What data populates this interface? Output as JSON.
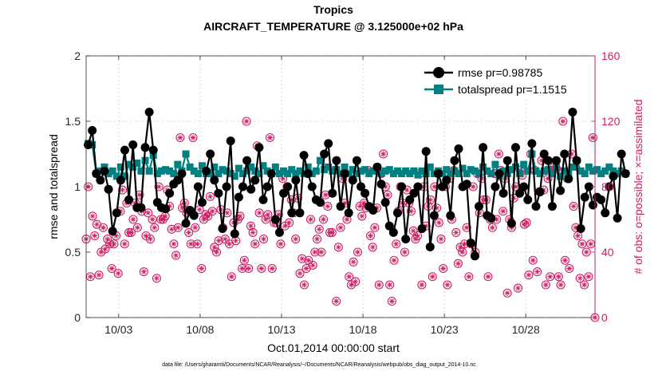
{
  "chart_data": {
    "type": "line",
    "title": "Tropics",
    "subtitle": "AIRCRAFT_TEMPERATURE @ 3.125000e+02 hPa",
    "xlabel": "Oct.01,2014 00:00:00 start",
    "ylabel_left": "rmse and totalspread",
    "ylabel_right": "# of obs: o=possible; ×=assimilated",
    "footnote": "data file: /Users/gharamti/Documents/NCAR/Reanalysis/~/Documents/NCAR/Reanalysis/webpub/obs_diag_output_2014-10.nc",
    "xlim": [
      1.0,
      32.25
    ],
    "ylim_left": [
      0,
      2
    ],
    "ylim_right": [
      0,
      160
    ],
    "x_ticks": [
      3,
      8,
      13,
      18,
      23,
      28
    ],
    "x_tick_labels": [
      "10/03",
      "10/08",
      "10/13",
      "10/18",
      "10/23",
      "10/28"
    ],
    "y_left_ticks": [
      0,
      0.5,
      1,
      1.5,
      2
    ],
    "y_left_tick_labels": [
      "0",
      "0.5",
      "1",
      "1.5",
      "2"
    ],
    "y_right_ticks": [
      0,
      40,
      80,
      120,
      160
    ],
    "y_right_tick_labels": [
      "0",
      "40",
      "80",
      "120",
      "160"
    ],
    "x_start": 1.125,
    "x_step": 0.25,
    "colors": {
      "rmse": "#000000",
      "spread": "#008080",
      "obs": "#cc1f66",
      "right_axis": "#cc1f66"
    },
    "legend": {
      "location": "top-right",
      "entries": [
        "rmse pr=0.98785",
        "totalspread pr=1.1515"
      ]
    },
    "series": [
      {
        "name": "rmse",
        "legend": "rmse pr=0.98785",
        "values": [
          1.32,
          1.43,
          1.1,
          1.05,
          1.12,
          0.98,
          0.66,
          0.8,
          1.05,
          1.28,
          0.9,
          1.32,
          0.84,
          0.84,
          1.3,
          1.57,
          1.28,
          0.88,
          0.84,
          0.83,
          0.95,
          1.02,
          1.05,
          1.1,
          0.72,
          0.82,
          0.78,
          1.0,
          0.88,
          1.12,
          1.25,
          1.05,
          0.95,
          0.68,
          1.0,
          1.35,
          0.64,
          0.92,
          1.0,
          1.2,
          0.98,
          1.05,
          1.3,
          0.9,
          1.0,
          1.1,
          0.75,
          0.65,
          0.95,
          1.0,
          0.8,
          1.05,
          0.8,
          1.24,
          1.1,
          1.0,
          0.9,
          0.88,
          1.25,
          1.33,
          0.95,
          1.2,
          0.85,
          1.1,
          0.8,
          1.05,
          1.2,
          1.0,
          0.95,
          0.85,
          0.82,
          1.15,
          1.02,
          0.88,
          0.7,
          0.65,
          0.8,
          1.0,
          0.6,
          0.9,
          0.95,
          1.0,
          0.68,
          1.27,
          0.54,
          0.78,
          1.1,
          1.0,
          1.05,
          0.78,
          1.2,
          1.29,
          1.0,
          1.02,
          0.57,
          0.47,
          0.85,
          1.3,
          0.78,
          0.76,
          1.0,
          1.1,
          0.95,
          1.2,
          0.72,
          1.3,
          0.95,
          1.0,
          0.9,
          1.33,
          0.85,
          0.96,
          1.25,
          1.2,
          0.85,
          1.2,
          0.97,
          1.25,
          1.06,
          1.57,
          1.2,
          0.68,
          0.92,
          1.0,
          0.86,
          0.92,
          0.9,
          0.8,
          1.0,
          1.08,
          0.76,
          1.25,
          1.1
        ]
      },
      {
        "name": "totalspread",
        "legend": "totalspread pr=1.1515",
        "values": [
          1.33,
          1.32,
          1.1,
          1.12,
          1.15,
          1.1,
          1.12,
          1.08,
          1.15,
          1.08,
          1.17,
          1.15,
          1.18,
          1.12,
          1.2,
          1.12,
          1.24,
          1.1,
          1.12,
          1.13,
          1.12,
          1.1,
          1.17,
          1.12,
          1.25,
          1.15,
          1.12,
          1.1,
          1.16,
          1.1,
          1.1,
          1.15,
          1.1,
          1.13,
          1.12,
          1.1,
          1.08,
          1.14,
          1.1,
          1.12,
          1.15,
          1.12,
          1.1,
          1.16,
          1.12,
          1.1,
          1.15,
          1.1,
          1.12,
          1.1,
          1.13,
          1.1,
          1.12,
          1.1,
          1.15,
          1.1,
          1.12,
          1.2,
          1.13,
          1.15,
          1.12,
          1.13,
          1.1,
          1.15,
          1.1,
          1.13,
          1.1,
          1.12,
          1.13,
          1.1,
          1.12,
          1.15,
          1.1,
          1.12,
          1.13,
          1.1,
          1.12,
          1.1,
          1.12,
          1.1,
          1.12,
          1.09,
          1.12,
          1.1,
          1.15,
          1.1,
          1.12,
          1.1,
          1.13,
          1.1,
          1.12,
          1.1,
          1.14,
          1.1,
          1.13,
          1.12,
          1.1,
          1.15,
          1.12,
          1.1,
          1.17,
          1.08,
          1.12,
          1.1,
          1.13,
          1.15,
          1.1,
          1.17,
          1.12,
          1.25,
          1.12,
          1.1,
          1.12,
          1.13,
          1.1,
          1.15,
          1.08,
          1.12,
          1.1,
          1.15,
          1.2,
          1.12,
          1.1,
          1.15,
          1.12,
          1.13,
          1.1,
          1.12,
          1.15,
          1.12,
          1.1,
          1.12,
          1.1
        ]
      },
      {
        "name": "obs",
        "legend": "",
        "values": [
          48,
          80,
          25,
          62,
          50,
          57,
          26,
          40,
          55,
          42,
          48,
          45,
          30,
          45,
          50,
          27,
          65,
          78,
          45,
          70,
          52,
          52,
          60,
          70,
          55,
          75,
          65,
          28,
          50,
          64,
          48,
          60,
          55,
          24,
          80,
          60,
          60,
          62,
          78,
          68,
          54,
          45,
          38,
          55,
          110,
          67,
          70,
          64,
          52,
          45,
          110,
          55,
          45,
          66,
          30,
          60,
          63,
          62,
          74,
          65,
          43,
          40,
          47,
          66,
          55,
          48,
          64,
          45,
          25,
          58,
          47,
          60,
          62,
          30,
          35,
          120,
          30,
          56,
          52,
          45,
          105,
          64,
          30,
          48,
          60,
          63,
          110,
          30,
          58,
          58,
          63,
          45,
          85,
          56,
          80,
          58,
          72,
          64,
          48,
          73,
          27,
          36,
          20,
          30,
          35,
          60,
          32,
          40,
          48,
          54,
          40,
          60,
          75,
          68,
          52,
          52,
          90,
          10,
          43,
          55,
          85,
          70,
          60,
          25,
          20,
          34,
          22,
          40,
          68,
          62,
          70,
          67,
          90,
          50,
          43,
          55,
          67,
          20,
          88,
          100,
          80,
          75,
          20,
          10,
          35,
          45,
          65,
          80,
          70,
          40,
          78,
          70,
          65,
          53,
          48,
          50,
          88,
          20,
          80,
          56,
          68,
          72,
          25,
          80,
          67,
          58,
          48,
          30,
          80,
          20,
          85,
          60,
          90,
          52,
          33,
          43,
          40,
          45,
          55,
          25,
          45,
          80,
          40,
          88,
          64,
          85,
          72,
          72,
          25,
          60,
          55,
          88,
          60,
          100,
          90,
          65,
          85,
          15,
          60,
          55,
          73,
          80,
          18,
          90,
          87,
          57,
          58,
          26,
          100,
          35,
          90,
          28,
          77,
          96,
          78,
          20,
          85,
          25,
          90,
          92,
          91,
          25,
          20,
          120,
          35,
          85,
          30,
          100,
          68,
          55,
          50,
          24,
          45,
          20,
          40,
          25,
          45,
          110,
          0
        ]
      }
    ]
  }
}
